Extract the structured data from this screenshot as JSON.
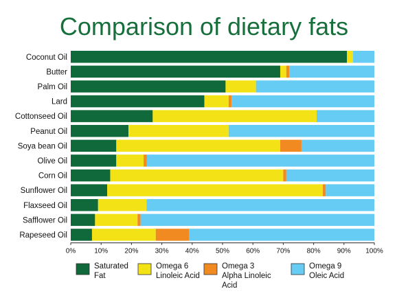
{
  "colors": {
    "saturated": "#10693a",
    "omega6": "#f3e316",
    "omega3": "#f08a21",
    "omega9": "#66ccf4"
  },
  "chart_data": {
    "type": "bar",
    "orientation": "horizontal",
    "stacked": true,
    "title": "Comparison of dietary fats",
    "xlim": [
      0,
      100
    ],
    "x_ticks": [
      "0%",
      "10%",
      "20%",
      "30%",
      "40%",
      "50%",
      "60%",
      "70%",
      "80%",
      "90%",
      "100%"
    ],
    "categories": [
      "Coconut Oil",
      "Butter",
      "Palm Oil",
      "Lard",
      "Cottonseed Oil",
      "Peanut Oil",
      "Soya bean Oil",
      "Olive Oil",
      "Corn Oil",
      "Sunflower Oil",
      "Flaxseed Oil",
      "Safflower Oil",
      "Rapeseed Oil"
    ],
    "series": [
      {
        "key": "saturated",
        "legend_line1": "Saturated",
        "legend_line2": "Fat",
        "legend_line3": "",
        "values": [
          91,
          69,
          51,
          44,
          27,
          19,
          15,
          15,
          13,
          12,
          9,
          8,
          7
        ]
      },
      {
        "key": "omega6",
        "legend_line1": "Omega 6",
        "legend_line2": "Linoleic Acid",
        "legend_line3": "",
        "values": [
          2,
          2,
          10,
          8,
          54,
          33,
          54,
          9,
          57,
          71,
          16,
          14,
          21
        ]
      },
      {
        "key": "omega3",
        "legend_line1": "Omega 3",
        "legend_line2": "Alpha Linoleic",
        "legend_line3": "Acid",
        "values": [
          0,
          1,
          0,
          1,
          0,
          0,
          7,
          1,
          1,
          1,
          0,
          1,
          11
        ]
      },
      {
        "key": "omega9",
        "legend_line1": "Omega 9",
        "legend_line2": "Oleic Acid",
        "legend_line3": "",
        "values": [
          7,
          28,
          39,
          47,
          19,
          48,
          24,
          75,
          29,
          16,
          75,
          77,
          61
        ]
      }
    ],
    "legend_position": "bottom"
  }
}
